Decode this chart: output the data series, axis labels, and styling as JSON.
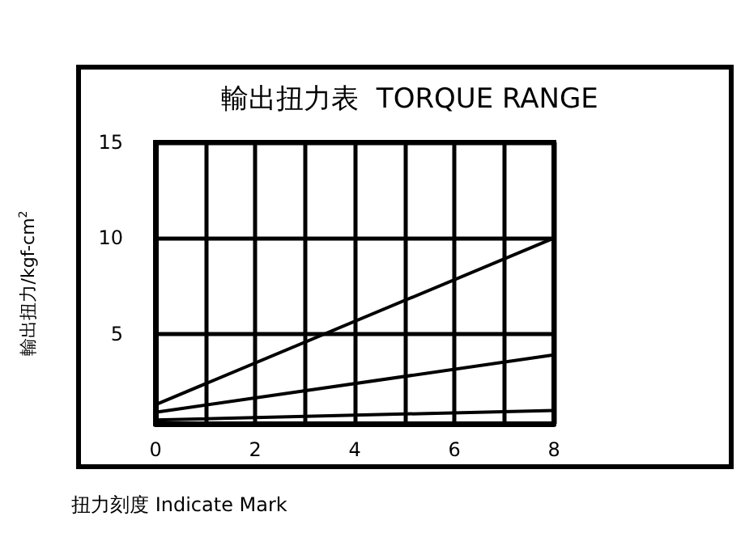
{
  "chart_data": {
    "type": "line",
    "title": "輸出扭力表  TORQUE RANGE",
    "xlabel": "扭力刻度 Indicate Mark",
    "ylabel": "輸出扭力/kgf-cm$^{2}$",
    "x": [
      0,
      8
    ],
    "series": [
      {
        "color": "#000000",
        "values": [
          1.3,
          10
        ]
      },
      {
        "color": "#000000",
        "values": [
          0.9,
          3.9
        ]
      },
      {
        "color": "#000000",
        "values": [
          0.5,
          1.0
        ]
      }
    ],
    "xlim": [
      0,
      8
    ],
    "xticks": [
      0,
      {
        "value": 1,
        "label": null
      },
      2,
      {
        "value": 3,
        "label": null
      },
      4,
      {
        "value": 5,
        "label": null
      },
      6,
      {
        "value": 7,
        "label": null
      },
      8
    ],
    "ylim": [
      0.3,
      15
    ],
    "yticks": [
      5,
      10,
      15
    ],
    "grid": true,
    "marker": "none",
    "line_style": "solid"
  }
}
